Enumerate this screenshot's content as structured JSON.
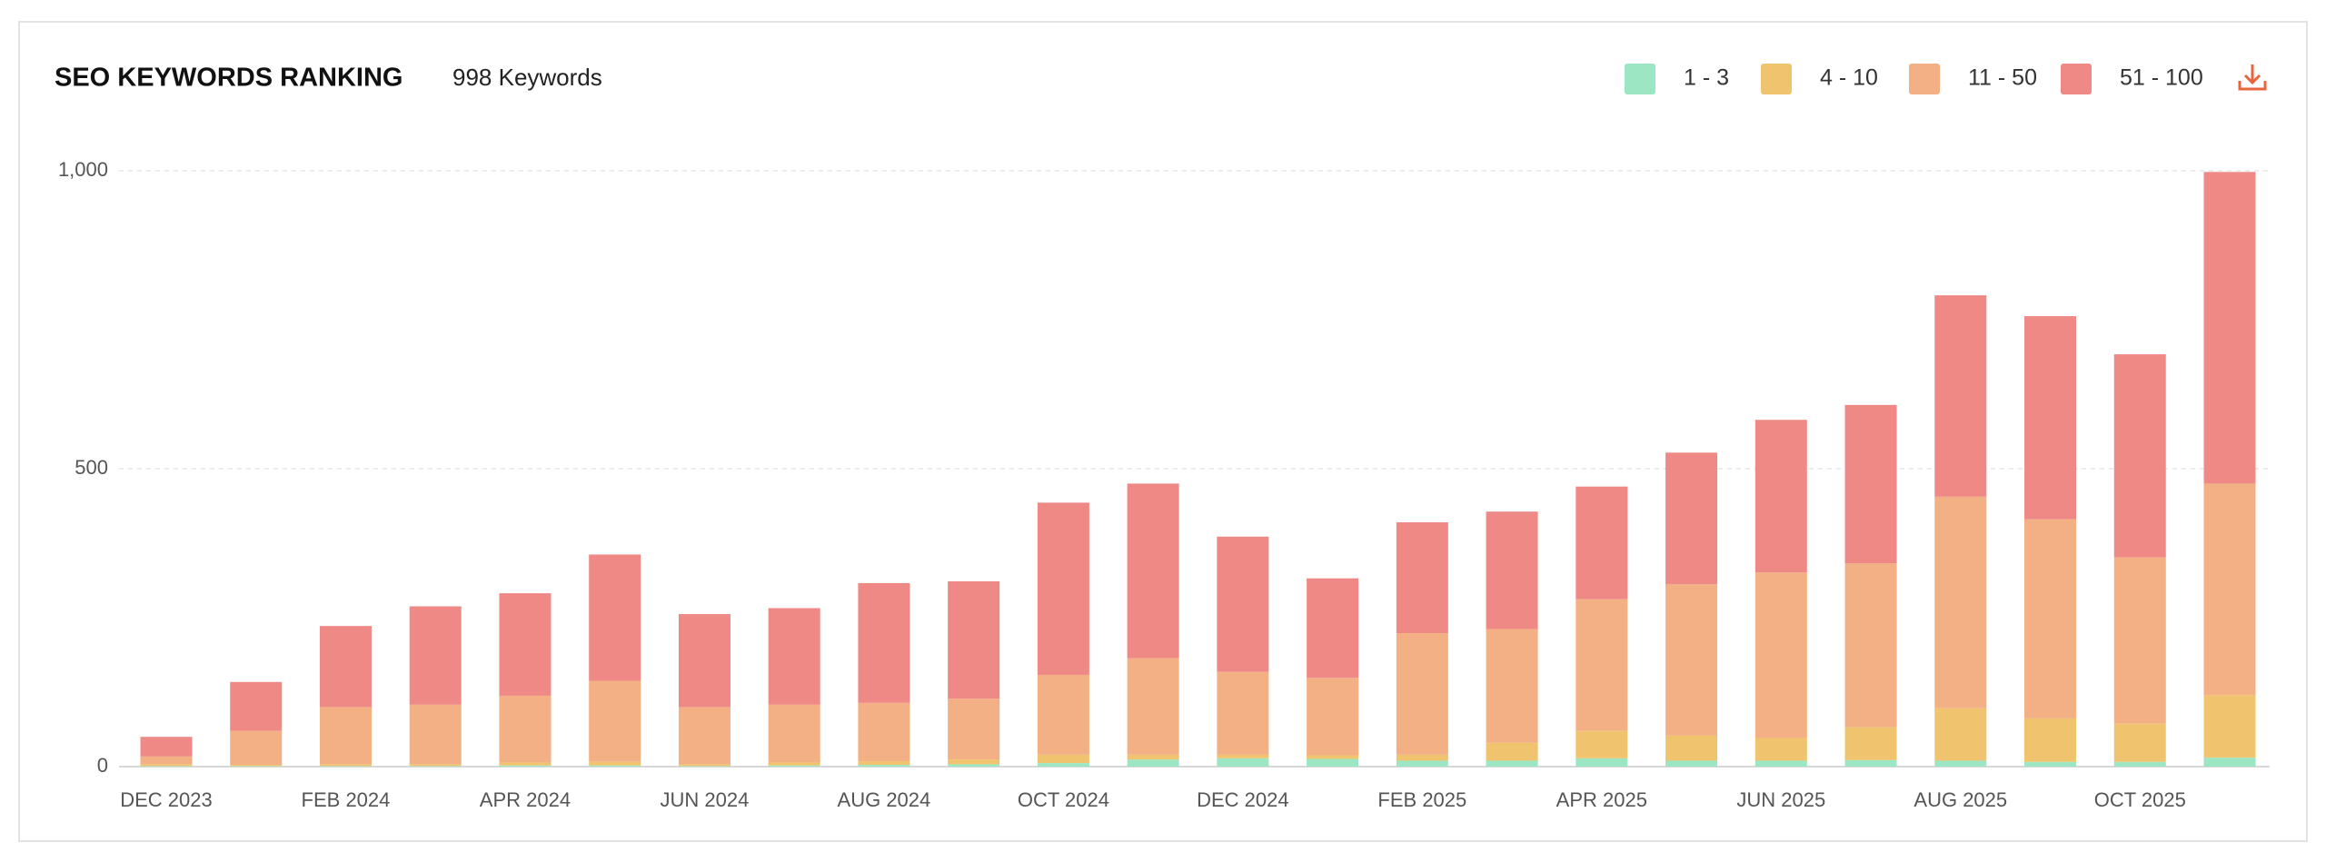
{
  "chart_data": {
    "type": "stacked-bar",
    "title": "SEO KEYWORDS RANKING",
    "subtitle": "998 Keywords",
    "categories": [
      "DEC 2023",
      null,
      "FEB 2024",
      null,
      "APR 2024",
      null,
      "JUN 2024",
      null,
      "AUG 2024",
      null,
      "OCT 2024",
      null,
      "DEC 2024",
      null,
      "FEB 2025",
      null,
      "APR 2025",
      null,
      "JUN 2025",
      null,
      "AUG 2025",
      null,
      "OCT 2025",
      null
    ],
    "series": [
      {
        "name": "1 - 3",
        "color": "#9de6c4",
        "values": [
          1,
          1,
          1,
          1,
          2,
          2,
          1,
          2,
          3,
          4,
          6,
          12,
          14,
          13,
          10,
          10,
          14,
          10,
          10,
          11,
          10,
          8,
          8,
          15
        ]
      },
      {
        "name": "4 - 10",
        "color": "#f0c46e",
        "values": [
          3,
          2,
          3,
          3,
          5,
          6,
          3,
          5,
          6,
          8,
          14,
          8,
          6,
          6,
          10,
          30,
          46,
          42,
          38,
          55,
          88,
          73,
          64,
          105
        ]
      },
      {
        "name": "11 - 50",
        "color": "#f3b084",
        "values": [
          13,
          57,
          96,
          100,
          112,
          136,
          96,
          97,
          98,
          102,
          134,
          162,
          139,
          130,
          204,
          191,
          221,
          254,
          278,
          275,
          355,
          334,
          279,
          355
        ]
      },
      {
        "name": "51 - 100",
        "color": "#ef8986",
        "values": [
          33,
          82,
          136,
          165,
          172,
          212,
          156,
          162,
          201,
          197,
          289,
          293,
          227,
          167,
          186,
          197,
          189,
          221,
          256,
          266,
          338,
          341,
          341,
          523
        ]
      }
    ],
    "ylim": [
      0,
      1000
    ],
    "yticks": [
      0,
      500,
      {
        "value": 1000,
        "label": "1,000"
      }
    ],
    "grid": true,
    "legend": "top-right"
  }
}
